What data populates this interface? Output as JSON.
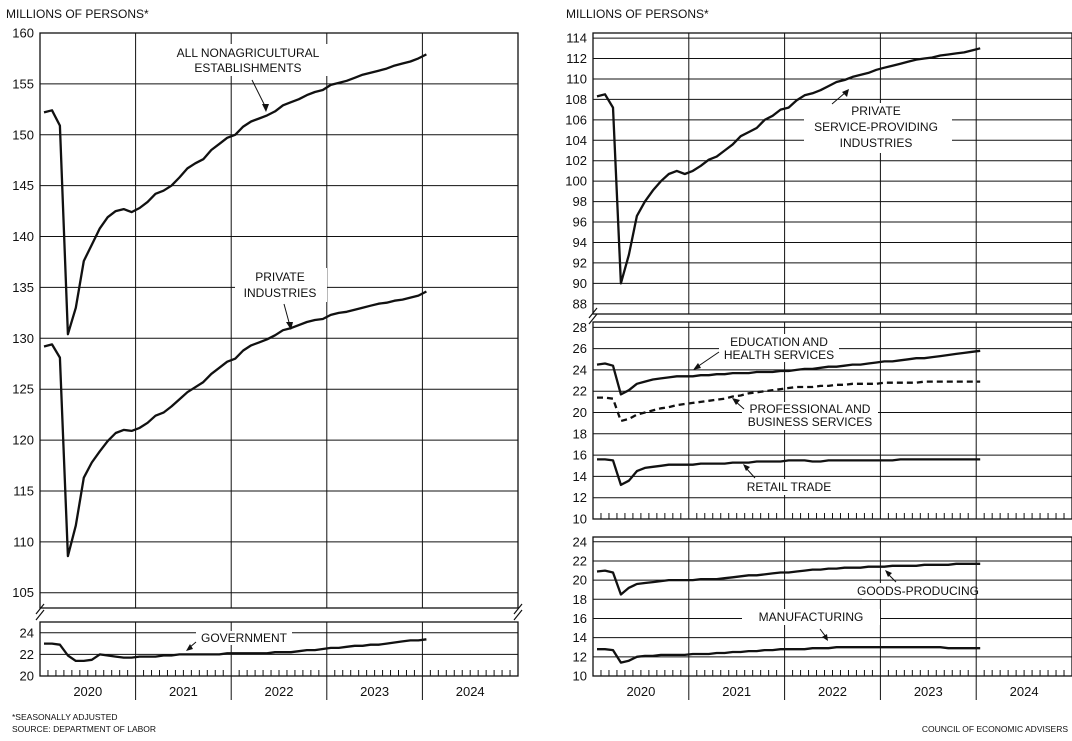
{
  "header_left": "MILLIONS OF PERSONS*",
  "header_right": "MILLIONS OF PERSONS*",
  "footnote_1": "*SEASONALLY ADJUSTED",
  "footnote_2": "SOURCE: DEPARTMENT OF LABOR",
  "credit": "COUNCIL OF ECONOMIC ADVISERS",
  "x_labels": [
    "2020",
    "2021",
    "2022",
    "2023",
    "2024"
  ],
  "chart_data": [
    {
      "type": "line",
      "y_ticks": [
        105,
        110,
        115,
        120,
        125,
        130,
        135,
        140,
        145,
        150,
        155,
        160
      ],
      "ylim": [
        103.5,
        160
      ],
      "grid": true,
      "series": [
        {
          "name": "ALL NONAGRICULTURAL ESTABLISHMENTS",
          "values": [
            152.2,
            152.4,
            150.9,
            130.4,
            133.0,
            137.6,
            139.2,
            140.8,
            141.9,
            142.5,
            142.7,
            142.4,
            142.8,
            143.4,
            144.2,
            144.5,
            145.0,
            145.8,
            146.7,
            147.2,
            147.6,
            148.5,
            149.1,
            149.7,
            150.0,
            150.8,
            151.3,
            151.6,
            151.9,
            152.3,
            152.9,
            153.2,
            153.5,
            153.9,
            154.2,
            154.4,
            154.9,
            155.1,
            155.3,
            155.6,
            155.9,
            156.1,
            156.3,
            156.5,
            156.8,
            157.0,
            157.2,
            157.5,
            157.9
          ]
        },
        {
          "name": "PRIVATE INDUSTRIES",
          "values": [
            129.2,
            129.4,
            128.1,
            108.6,
            111.6,
            116.3,
            117.8,
            118.9,
            119.9,
            120.7,
            121.0,
            120.9,
            121.2,
            121.7,
            122.4,
            122.7,
            123.3,
            124.0,
            124.7,
            125.2,
            125.7,
            126.5,
            127.1,
            127.7,
            128.0,
            128.8,
            129.3,
            129.6,
            129.9,
            130.3,
            130.8,
            131.0,
            131.3,
            131.6,
            131.8,
            131.9,
            132.3,
            132.5,
            132.6,
            132.8,
            133.0,
            133.2,
            133.4,
            133.5,
            133.7,
            133.8,
            134.0,
            134.2,
            134.6
          ]
        }
      ]
    },
    {
      "type": "line",
      "y_ticks": [
        20,
        22,
        24
      ],
      "ylim": [
        20,
        25
      ],
      "grid": true,
      "series": [
        {
          "name": "GOVERNMENT",
          "values": [
            23.0,
            23.0,
            22.9,
            21.9,
            21.4,
            21.4,
            21.5,
            22.0,
            21.9,
            21.8,
            21.7,
            21.7,
            21.8,
            21.8,
            21.8,
            21.9,
            21.9,
            22.0,
            22.0,
            22.0,
            22.0,
            22.0,
            22.0,
            22.1,
            22.1,
            22.1,
            22.1,
            22.1,
            22.1,
            22.2,
            22.2,
            22.2,
            22.3,
            22.4,
            22.4,
            22.5,
            22.6,
            22.6,
            22.7,
            22.8,
            22.8,
            22.9,
            22.9,
            23.0,
            23.1,
            23.2,
            23.3,
            23.3,
            23.4
          ]
        }
      ]
    },
    {
      "type": "line",
      "y_ticks": [
        88,
        90,
        92,
        94,
        96,
        98,
        100,
        102,
        104,
        106,
        108,
        110,
        112,
        114
      ],
      "ylim": [
        87,
        114.5
      ],
      "grid": true,
      "series": [
        {
          "name": "PRIVATE SERVICE-PROVIDING INDUSTRIES",
          "values": [
            108.3,
            108.5,
            107.2,
            90.0,
            92.8,
            96.6,
            98.0,
            99.1,
            100.0,
            100.7,
            101.0,
            100.7,
            101.0,
            101.5,
            102.1,
            102.4,
            103.0,
            103.6,
            104.4,
            104.8,
            105.2,
            106.0,
            106.4,
            107.0,
            107.2,
            107.9,
            108.4,
            108.6,
            108.9,
            109.3,
            109.7,
            109.9,
            110.2,
            110.4,
            110.6,
            110.9,
            111.1,
            111.3,
            111.5,
            111.7,
            111.9,
            112.0,
            112.1,
            112.3,
            112.4,
            112.5,
            112.6,
            112.8,
            113.0
          ]
        }
      ]
    },
    {
      "type": "line",
      "y_ticks": [
        10,
        12,
        14,
        16,
        18,
        20,
        22,
        24,
        26,
        28
      ],
      "ylim": [
        10,
        28.5
      ],
      "grid": true,
      "series": [
        {
          "name": "EDUCATION AND HEALTH SERVICES",
          "values": [
            24.5,
            24.6,
            24.4,
            21.7,
            22.1,
            22.7,
            22.9,
            23.1,
            23.2,
            23.3,
            23.4,
            23.4,
            23.4,
            23.5,
            23.5,
            23.6,
            23.6,
            23.7,
            23.7,
            23.7,
            23.8,
            23.8,
            23.8,
            23.9,
            23.9,
            24.0,
            24.1,
            24.1,
            24.2,
            24.3,
            24.3,
            24.4,
            24.5,
            24.5,
            24.6,
            24.7,
            24.8,
            24.8,
            24.9,
            25.0,
            25.1,
            25.1,
            25.2,
            25.3,
            25.4,
            25.5,
            25.6,
            25.7,
            25.8
          ]
        },
        {
          "name": "PROFESSIONAL AND BUSINESS SERVICES",
          "values": [
            21.4,
            21.4,
            21.3,
            19.2,
            19.4,
            19.8,
            20.0,
            20.2,
            20.4,
            20.5,
            20.7,
            20.8,
            20.9,
            21.0,
            21.1,
            21.2,
            21.3,
            21.5,
            21.6,
            21.8,
            21.9,
            22.0,
            22.1,
            22.2,
            22.3,
            22.4,
            22.4,
            22.4,
            22.5,
            22.5,
            22.6,
            22.6,
            22.7,
            22.7,
            22.7,
            22.7,
            22.8,
            22.8,
            22.8,
            22.8,
            22.8,
            22.9,
            22.9,
            22.9,
            22.9,
            22.9,
            22.9,
            22.9,
            22.9
          ]
        },
        {
          "name": "RETAIL TRADE",
          "values": [
            15.6,
            15.6,
            15.5,
            13.2,
            13.6,
            14.5,
            14.8,
            14.9,
            15.0,
            15.1,
            15.1,
            15.1,
            15.1,
            15.2,
            15.2,
            15.2,
            15.2,
            15.3,
            15.3,
            15.3,
            15.4,
            15.4,
            15.4,
            15.4,
            15.5,
            15.5,
            15.5,
            15.4,
            15.4,
            15.5,
            15.5,
            15.5,
            15.5,
            15.5,
            15.5,
            15.5,
            15.5,
            15.5,
            15.6,
            15.6,
            15.6,
            15.6,
            15.6,
            15.6,
            15.6,
            15.6,
            15.6,
            15.6,
            15.6
          ]
        }
      ]
    },
    {
      "type": "line",
      "y_ticks": [
        10,
        12,
        14,
        16,
        18,
        20,
        22,
        24
      ],
      "ylim": [
        10,
        24.5
      ],
      "grid": true,
      "series": [
        {
          "name": "GOODS-PRODUCING",
          "values": [
            20.9,
            21.0,
            20.8,
            18.5,
            19.2,
            19.6,
            19.7,
            19.8,
            19.9,
            20.0,
            20.0,
            20.0,
            20.0,
            20.1,
            20.1,
            20.1,
            20.2,
            20.3,
            20.4,
            20.5,
            20.5,
            20.6,
            20.7,
            20.8,
            20.8,
            20.9,
            21.0,
            21.1,
            21.1,
            21.2,
            21.2,
            21.3,
            21.3,
            21.3,
            21.4,
            21.4,
            21.4,
            21.5,
            21.5,
            21.5,
            21.5,
            21.6,
            21.6,
            21.6,
            21.6,
            21.7,
            21.7,
            21.7,
            21.7
          ]
        },
        {
          "name": "MANUFACTURING",
          "values": [
            12.8,
            12.8,
            12.7,
            11.4,
            11.6,
            12.0,
            12.1,
            12.1,
            12.2,
            12.2,
            12.2,
            12.2,
            12.3,
            12.3,
            12.3,
            12.4,
            12.4,
            12.5,
            12.5,
            12.6,
            12.6,
            12.7,
            12.7,
            12.8,
            12.8,
            12.8,
            12.8,
            12.9,
            12.9,
            12.9,
            13.0,
            13.0,
            13.0,
            13.0,
            13.0,
            13.0,
            13.0,
            13.0,
            13.0,
            13.0,
            13.0,
            13.0,
            13.0,
            13.0,
            12.9,
            12.9,
            12.9,
            12.9,
            12.9
          ]
        }
      ]
    }
  ],
  "annotations": {
    "all_nonag_1": "ALL NONAGRICULTURAL",
    "all_nonag_2": "ESTABLISHMENTS",
    "private_1": "PRIVATE",
    "private_2": "INDUSTRIES",
    "government": "GOVERNMENT",
    "svc_1": "PRIVATE",
    "svc_2": "SERVICE-PROVIDING",
    "svc_3": "INDUSTRIES",
    "edu_1": "EDUCATION AND",
    "edu_2": "HEALTH SERVICES",
    "prof_1": "PROFESSIONAL AND",
    "prof_2": "BUSINESS SERVICES",
    "retail": "RETAIL TRADE",
    "goods": "GOODS-PRODUCING",
    "manuf": "MANUFACTURING"
  }
}
